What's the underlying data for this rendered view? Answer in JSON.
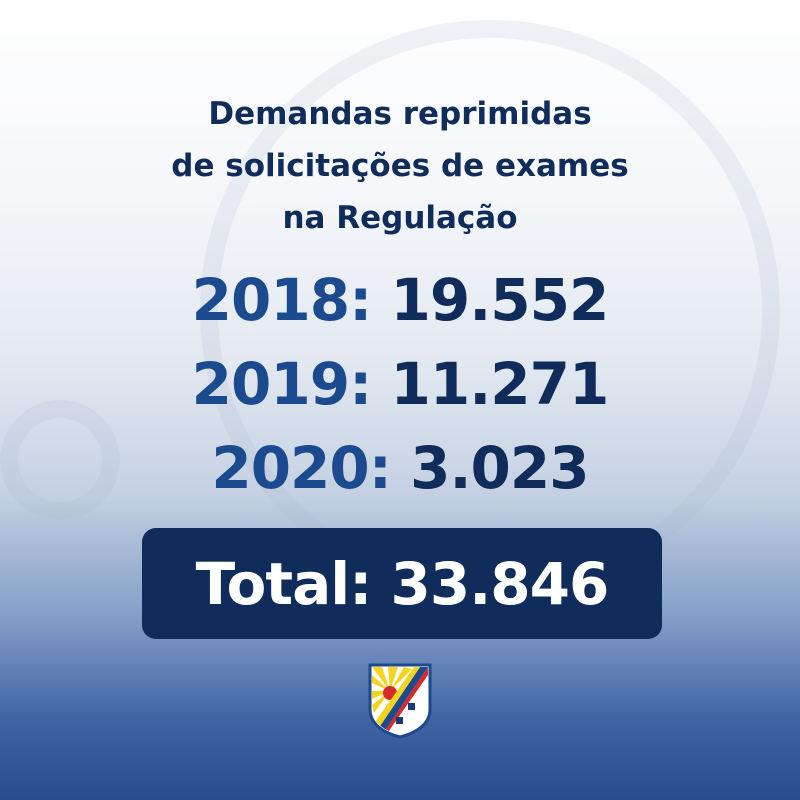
{
  "title": [
    "Demandas reprimidas",
    "de solicitações de exames",
    "na Regulação"
  ],
  "years": [
    {
      "year": "2018:",
      "value": "19.552"
    },
    {
      "year": "2019:",
      "value": "11.271"
    },
    {
      "year": "2020:",
      "value": "3.023"
    }
  ],
  "total": "Total: 33.846",
  "colors": {
    "navy": "#0f2c5a",
    "blue": "#1b4a8f"
  },
  "logo": "municipal-coat-of-arms"
}
